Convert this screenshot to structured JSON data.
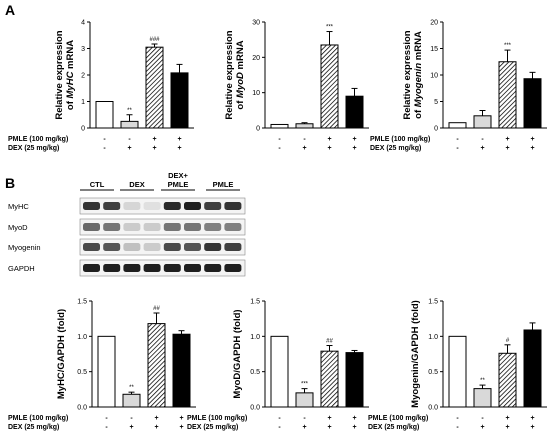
{
  "panel_labels": {
    "a": "A",
    "b": "B"
  },
  "colors": {
    "ctl": "#ffffff",
    "dex": "#d9d9d9",
    "dex_pmle": "hatched",
    "pmle": "#000000"
  },
  "treatment_rows": {
    "pmle": {
      "label": "PMLE (100 mg/kg)",
      "marks": [
        "-",
        "-",
        "+",
        "+"
      ]
    },
    "dex": {
      "label": "DEX (25 mg/kg)",
      "marks": [
        "-",
        "+",
        "+",
        "+"
      ]
    }
  },
  "blot": {
    "group_labels": [
      "CTL",
      "DEX",
      "DEX+\nPMLE",
      "PMLE"
    ],
    "row_labels": [
      "MyHC",
      "MyoD",
      "Myogenin",
      "GAPDH"
    ]
  },
  "chart_data": [
    {
      "type": "bar",
      "ylabel_prefix": "Relative expression of ",
      "ylabel_gene": "MyHC",
      "ylabel_suffix": " mRNA",
      "ylim": [
        0,
        4
      ],
      "yticks": [
        0,
        1,
        2,
        3,
        4
      ],
      "values": [
        1.0,
        0.25,
        3.05,
        2.08
      ],
      "errors": [
        0,
        0.25,
        0.12,
        0.32
      ],
      "annotations": [
        "",
        "**",
        "###",
        ""
      ]
    },
    {
      "type": "bar",
      "ylabel_prefix": "Relative expression of ",
      "ylabel_gene": "MyoD",
      "ylabel_suffix": " mRNA",
      "ylim": [
        0,
        30
      ],
      "yticks": [
        0,
        10,
        20,
        30
      ],
      "values": [
        1.0,
        1.2,
        23.5,
        9.0
      ],
      "errors": [
        0,
        0.3,
        3.8,
        2.2
      ],
      "annotations": [
        "",
        "",
        "***",
        ""
      ]
    },
    {
      "type": "bar",
      "ylabel_prefix": "Relative expression of ",
      "ylabel_gene": "Myogenin",
      "ylabel_suffix": " mRNA",
      "ylim": [
        0,
        20
      ],
      "yticks": [
        0,
        5,
        10,
        15,
        20
      ],
      "values": [
        1.0,
        2.3,
        12.5,
        9.3
      ],
      "errors": [
        0,
        1.0,
        2.2,
        1.2
      ],
      "annotations": [
        "",
        "",
        "***",
        ""
      ]
    },
    {
      "type": "bar",
      "ylabel": "MyHC/GAPDH (fold)",
      "ylim": [
        0,
        1.5
      ],
      "yticks": [
        "0.0",
        "0.5",
        "1.0",
        "1.5"
      ],
      "values": [
        1.0,
        0.18,
        1.18,
        1.03
      ],
      "errors": [
        0,
        0.03,
        0.15,
        0.05
      ],
      "annotations": [
        "",
        "**",
        "##",
        ""
      ]
    },
    {
      "type": "bar",
      "ylabel": "MyoD/GAPDH (fold)",
      "ylim": [
        0,
        1.5
      ],
      "yticks": [
        "0.0",
        "0.5",
        "1.0",
        "1.5"
      ],
      "values": [
        1.0,
        0.2,
        0.79,
        0.77
      ],
      "errors": [
        0,
        0.06,
        0.08,
        0.03
      ],
      "annotations": [
        "",
        "***",
        "##",
        ""
      ]
    },
    {
      "type": "bar",
      "ylabel": "Myogenin/GAPDH (fold)",
      "ylim": [
        0,
        1.5
      ],
      "yticks": [
        "0.0",
        "0.5",
        "1.0",
        "1.5"
      ],
      "values": [
        1.0,
        0.26,
        0.76,
        1.09
      ],
      "errors": [
        0,
        0.05,
        0.12,
        0.1
      ],
      "annotations": [
        "",
        "**",
        "#",
        ""
      ]
    }
  ]
}
